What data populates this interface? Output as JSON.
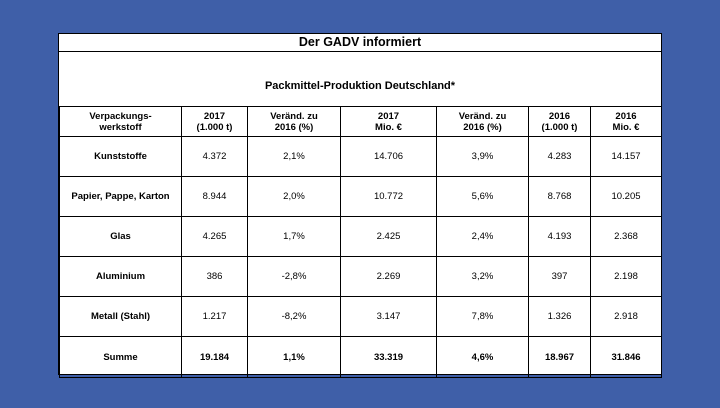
{
  "heading": "Der GADV informiert",
  "subtitle": "Packmittel-Produktion Deutschland*",
  "columns": [
    {
      "line1": "Verpackungs-",
      "line2": "werkstoff"
    },
    {
      "line1": "2017",
      "line2": "(1.000 t)"
    },
    {
      "line1": "Veränd. zu",
      "line2": "2016 (%)"
    },
    {
      "line1": "2017",
      "line2": "Mio. €"
    },
    {
      "line1": "Veränd. zu",
      "line2": "2016 (%)"
    },
    {
      "line1": "2016",
      "line2": "(1.000 t)"
    },
    {
      "line1": "2016",
      "line2": "Mio. €"
    }
  ],
  "rows": [
    [
      "Kunststoffe",
      "4.372",
      "2,1%",
      "14.706",
      "3,9%",
      "4.283",
      "14.157"
    ],
    [
      "Papier, Pappe, Karton",
      "8.944",
      "2,0%",
      "10.772",
      "5,6%",
      "8.768",
      "10.205"
    ],
    [
      "Glas",
      "4.265",
      "1,7%",
      "2.425",
      "2,4%",
      "4.193",
      "2.368"
    ],
    [
      "Aluminium",
      "386",
      "-2,8%",
      "2.269",
      "3,2%",
      "397",
      "2.198"
    ],
    [
      "Metall (Stahl)",
      "1.217",
      "-8,2%",
      "3.147",
      "7,8%",
      "1.326",
      "2.918"
    ]
  ],
  "total": [
    "Summe",
    "19.184",
    "1,1%",
    "33.319",
    "4,6%",
    "18.967",
    "31.846"
  ]
}
